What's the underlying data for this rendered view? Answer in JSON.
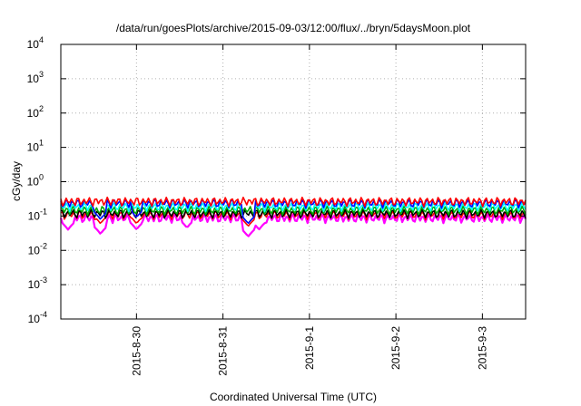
{
  "chart_data": {
    "type": "line",
    "title": "/data/run/goesPlots/archive/2015-09-03/12:00/flux/../bryn/5daysMoon.plot",
    "xlabel": "Coordinated Universal Time (UTC)",
    "ylabel": "cGy/day",
    "y_scale": "log",
    "ylim": [
      0.0001,
      10000
    ],
    "y_ticks": [
      {
        "base": "10",
        "exp": "-4",
        "value": 0.0001
      },
      {
        "base": "10",
        "exp": "-3",
        "value": 0.001
      },
      {
        "base": "10",
        "exp": "-2",
        "value": 0.01
      },
      {
        "base": "10",
        "exp": "-1",
        "value": 0.1
      },
      {
        "base": "10",
        "exp": "0",
        "value": 1
      },
      {
        "base": "10",
        "exp": "1",
        "value": 10
      },
      {
        "base": "10",
        "exp": "2",
        "value": 100
      },
      {
        "base": "10",
        "exp": "3",
        "value": 1000
      },
      {
        "base": "10",
        "exp": "4",
        "value": 10000
      }
    ],
    "xlim": [
      "2015-08-29 03:00",
      "2015-09-03 12:00"
    ],
    "x_ticks": [
      "2015-8-30",
      "2015-8-31",
      "2015-9-1",
      "2015-9-2",
      "2015-9-3"
    ],
    "grid": true,
    "legend": "none",
    "series": [
      {
        "color": "#ff00ff",
        "level": 0.088,
        "dips": [
          [
            "2015-08-29 05:00",
            0.04
          ],
          [
            "2015-08-29 14:00",
            0.03
          ],
          [
            "2015-08-30 00:00",
            0.04
          ],
          [
            "2015-08-30 14:00",
            0.045
          ],
          [
            "2015-08-31 07:00",
            0.025
          ],
          [
            "2015-08-31 10:00",
            0.04
          ]
        ]
      },
      {
        "color": "#ff0000",
        "level": 0.11,
        "dips": [
          [
            "2015-08-29 14:00",
            0.06
          ],
          [
            "2015-08-30 00:00",
            0.06
          ],
          [
            "2015-08-31 07:00",
            0.05
          ]
        ]
      },
      {
        "color": "#000000",
        "level": 0.12,
        "dips": []
      },
      {
        "color": "#00aa00",
        "level": 0.15,
        "dips": []
      },
      {
        "color": "#00ffff",
        "level": 0.19,
        "dips": [
          [
            "2015-08-29 14:00",
            0.08
          ],
          [
            "2015-08-31 07:00",
            0.06
          ]
        ]
      },
      {
        "color": "#0000ff",
        "level": 0.24,
        "dips": [
          [
            "2015-08-29 14:00",
            0.08
          ],
          [
            "2015-08-30 00:00",
            0.09
          ],
          [
            "2015-08-31 07:00",
            0.06
          ]
        ]
      },
      {
        "color": "#ff0000",
        "level": 0.27,
        "dips": []
      }
    ]
  }
}
